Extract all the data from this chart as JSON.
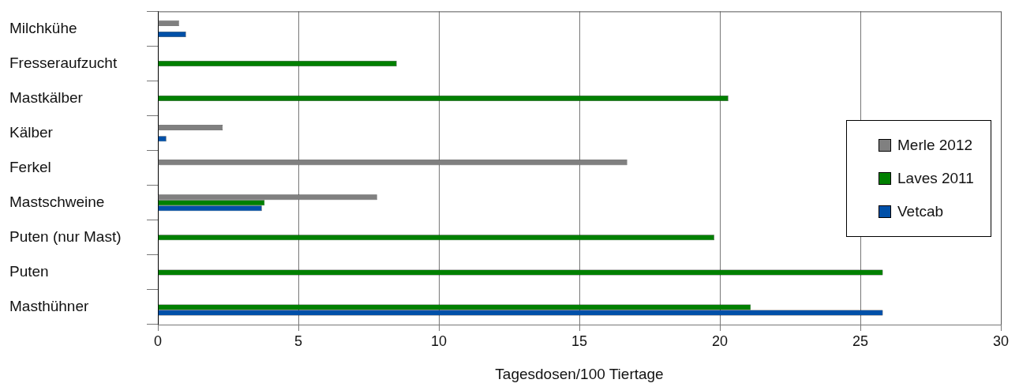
{
  "chart_data": {
    "type": "bar",
    "orientation": "horizontal",
    "categories": [
      "Milchkühe",
      "Fresseraufzucht",
      "Mastkälber",
      "Kälber",
      "Ferkel",
      "Mastschweine",
      "Puten (nur Mast)",
      "Puten",
      "Masthühner"
    ],
    "series": [
      {
        "name": "Merle 2012",
        "color": "#808080",
        "values": [
          0.75,
          null,
          null,
          2.3,
          16.7,
          7.8,
          null,
          null,
          null
        ]
      },
      {
        "name": "Laves 2011",
        "color": "#008000",
        "values": [
          null,
          8.5,
          20.3,
          null,
          null,
          3.8,
          19.8,
          25.8,
          21.1
        ]
      },
      {
        "name": "Vetcab",
        "color": "#0050a8",
        "values": [
          1.0,
          null,
          null,
          0.3,
          null,
          3.7,
          null,
          null,
          25.8
        ]
      }
    ],
    "xlabel": "Tagesdosen/100 Tiertage",
    "xlim": [
      0,
      30
    ],
    "xticks": [
      0,
      5,
      10,
      15,
      20,
      25,
      30
    ],
    "grid": "x",
    "legend": "right"
  }
}
